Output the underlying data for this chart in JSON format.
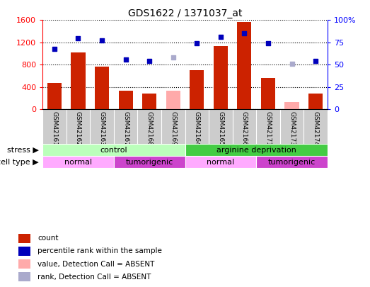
{
  "title": "GDS1622 / 1371037_at",
  "samples": [
    "GSM42161",
    "GSM42162",
    "GSM42163",
    "GSM42167",
    "GSM42168",
    "GSM42169",
    "GSM42164",
    "GSM42165",
    "GSM42166",
    "GSM42171",
    "GSM42173",
    "GSM42174"
  ],
  "counts": [
    480,
    1020,
    760,
    340,
    290,
    null,
    700,
    1130,
    1570,
    560,
    null,
    280
  ],
  "counts_absent": [
    null,
    null,
    null,
    null,
    null,
    330,
    null,
    null,
    null,
    null,
    130,
    null
  ],
  "percentile_ranks": [
    68,
    80,
    77,
    56,
    54,
    null,
    74,
    81,
    85,
    74,
    null,
    54
  ],
  "percentile_ranks_absent": [
    null,
    null,
    null,
    null,
    null,
    58,
    null,
    null,
    null,
    null,
    51,
    null
  ],
  "ylim_left": [
    0,
    1600
  ],
  "ylim_right": [
    0,
    100
  ],
  "yticks_left": [
    0,
    400,
    800,
    1200,
    1600
  ],
  "yticks_right": [
    0,
    25,
    50,
    75,
    100
  ],
  "ytick_labels_right": [
    "0",
    "25",
    "50",
    "75",
    "100%"
  ],
  "bar_color": "#cc2200",
  "bar_absent_color": "#ffaaaa",
  "dot_color": "#0000bb",
  "dot_absent_color": "#aaaacc",
  "stress_groups": [
    {
      "label": "control",
      "start": 0,
      "end": 6,
      "color": "#bbffbb"
    },
    {
      "label": "arginine deprivation",
      "start": 6,
      "end": 12,
      "color": "#44cc44"
    }
  ],
  "celltype_groups": [
    {
      "label": "normal",
      "start": 0,
      "end": 3,
      "color": "#ffaaff"
    },
    {
      "label": "tumorigenic",
      "start": 3,
      "end": 6,
      "color": "#cc44cc"
    },
    {
      "label": "normal",
      "start": 6,
      "end": 9,
      "color": "#ffaaff"
    },
    {
      "label": "tumorigenic",
      "start": 9,
      "end": 12,
      "color": "#cc44cc"
    }
  ],
  "legend_items": [
    {
      "label": "count",
      "color": "#cc2200"
    },
    {
      "label": "percentile rank within the sample",
      "color": "#0000bb"
    },
    {
      "label": "value, Detection Call = ABSENT",
      "color": "#ffaaaa"
    },
    {
      "label": "rank, Detection Call = ABSENT",
      "color": "#aaaacc"
    }
  ],
  "xlabel_stress": "stress",
  "xlabel_celltype": "cell type",
  "sample_bg": "#cccccc",
  "plot_bg": "#ffffff"
}
